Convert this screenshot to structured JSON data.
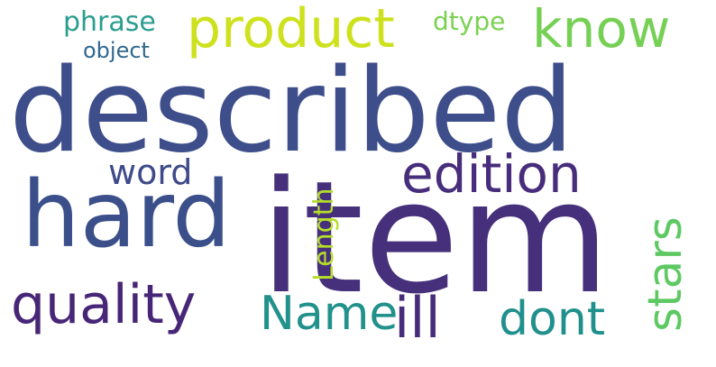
{
  "words": [
    {
      "id": "described",
      "text": "described",
      "color": "#3d4e8a"
    },
    {
      "id": "item",
      "text": "item",
      "color": "#46307b"
    },
    {
      "id": "hard",
      "text": "hard",
      "color": "#3b508a"
    },
    {
      "id": "product",
      "text": "product",
      "color": "#cde11d"
    },
    {
      "id": "know",
      "text": "know",
      "color": "#75d054"
    },
    {
      "id": "edition",
      "text": "edition",
      "color": "#472d7b"
    },
    {
      "id": "quality",
      "text": "quality",
      "color": "#482677"
    },
    {
      "id": "name",
      "text": "Name",
      "color": "#21918c"
    },
    {
      "id": "ill",
      "text": "ill",
      "color": "#472c7a"
    },
    {
      "id": "dont",
      "text": "dont",
      "color": "#20908d"
    },
    {
      "id": "stars",
      "text": "stars",
      "color": "#5ec962"
    },
    {
      "id": "word",
      "text": "word",
      "color": "#3e4a89"
    },
    {
      "id": "length",
      "text": "Length",
      "color": "#b5de2b"
    },
    {
      "id": "phrase",
      "text": "phrase",
      "color": "#2a9d8e"
    },
    {
      "id": "object",
      "text": "object",
      "color": "#31688e"
    },
    {
      "id": "dtype",
      "text": "dtype",
      "color": "#7ad151"
    }
  ],
  "orientation": {
    "stars": "vertical",
    "length": "vertical"
  }
}
